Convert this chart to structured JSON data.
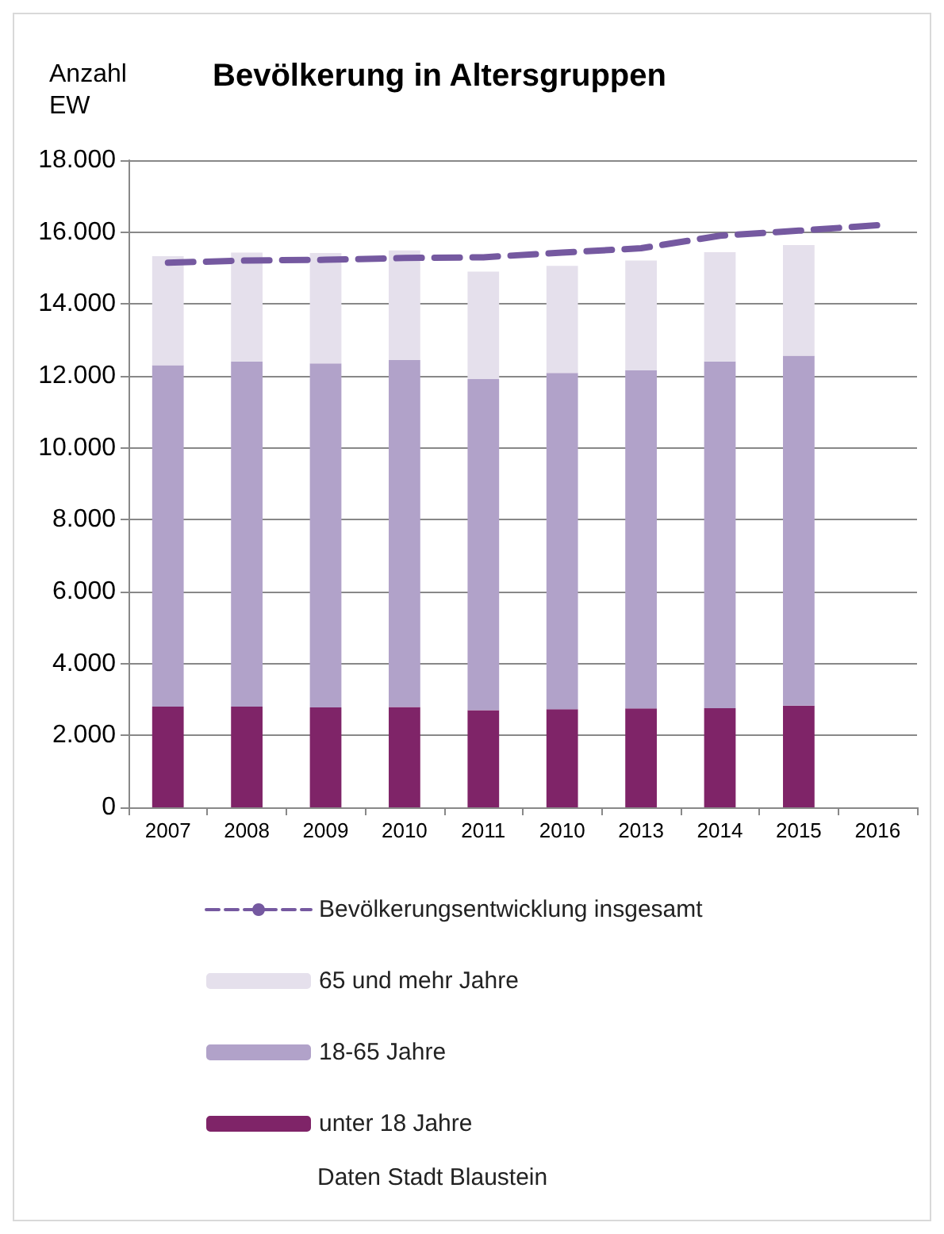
{
  "chart_data": {
    "type": "bar",
    "title": "Bevölkerung in Altersgruppen",
    "ylabel": "Anzahl\nEW",
    "categories": [
      "2007",
      "2008",
      "2009",
      "2010",
      "2011",
      "2010",
      "2013",
      "2014",
      "2015",
      "2016"
    ],
    "stacked": true,
    "series": [
      {
        "name": "unter 18 Jahre",
        "color": "#7f2468",
        "values": [
          2800,
          2800,
          2780,
          2790,
          2700,
          2730,
          2750,
          2760,
          2830,
          null
        ]
      },
      {
        "name": "18-65 Jahre",
        "color": "#b1a2c9",
        "values": [
          9500,
          9600,
          9570,
          9650,
          9210,
          9350,
          9410,
          9640,
          9730,
          null
        ]
      },
      {
        "name": "65 und mehr Jahre",
        "color": "#e5e0ec",
        "values": [
          3030,
          3030,
          3070,
          3050,
          2990,
          2980,
          3050,
          3040,
          3080,
          null
        ]
      },
      {
        "name": "Bevölkerungsentwicklung insgesamt",
        "type": "line",
        "color": "#7559a0",
        "line_style": "dashed",
        "marker": "none",
        "values": [
          15150,
          15210,
          15230,
          15280,
          15300,
          15430,
          15550,
          15900,
          16040,
          16190
        ]
      }
    ],
    "ylim": [
      0,
      18000
    ],
    "yticks": [
      {
        "value": 0,
        "label": "0"
      },
      {
        "value": 2000,
        "label": "2.000"
      },
      {
        "value": 4000,
        "label": "4.000"
      },
      {
        "value": 6000,
        "label": "6.000"
      },
      {
        "value": 8000,
        "label": "8.000"
      },
      {
        "value": 10000,
        "label": "10.000"
      },
      {
        "value": 12000,
        "label": "12.000"
      },
      {
        "value": 14000,
        "label": "14.000"
      },
      {
        "value": 16000,
        "label": "16.000"
      },
      {
        "value": 18000,
        "label": "18.000"
      }
    ],
    "grid": "y",
    "legend": "bottom",
    "annotations": [
      "Daten Stadt Blaustein"
    ]
  }
}
